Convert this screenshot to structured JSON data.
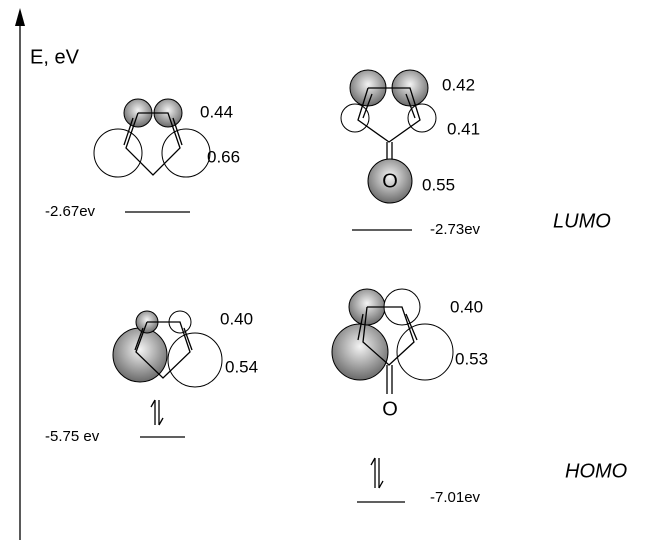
{
  "axis_label": "E, eV",
  "orbital_labels": {
    "lumo": "LUMO",
    "homo": "HOMO"
  },
  "cyclopentadiene": {
    "lumo": {
      "energy": "-2.67ev",
      "coefficients": [
        "0.44",
        "0.66"
      ]
    },
    "homo": {
      "energy": "-5.75 ev",
      "coefficients": [
        "0.40",
        "0.54"
      ]
    }
  },
  "cyclopentadienone": {
    "oxygen": "O",
    "lumo": {
      "energy": "-2.73ev",
      "coefficients": [
        "0.42",
        "0.41",
        "0.55"
      ]
    },
    "homo": {
      "energy": "-7.01ev",
      "coefficients": [
        "0.40",
        "0.53"
      ]
    }
  }
}
